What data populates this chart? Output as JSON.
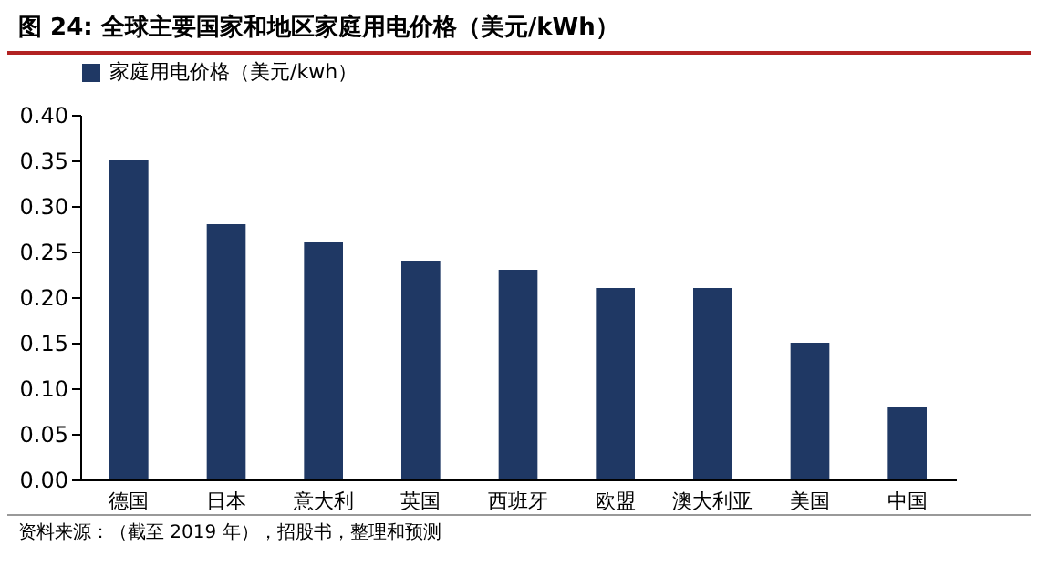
{
  "chart_data": {
    "type": "bar",
    "title": "图 24: 全球主要国家和地区家庭用电价格（美元/kWh）",
    "categories": [
      "德国",
      "日本",
      "意大利",
      "英国",
      "西班牙",
      "欧盟",
      "澳大利亚",
      "美国",
      "中国"
    ],
    "series": [
      {
        "name": "家庭用电价格（美元/kwh）",
        "color": "#1f3864",
        "values": [
          0.35,
          0.28,
          0.26,
          0.24,
          0.23,
          0.21,
          0.21,
          0.15,
          0.08
        ]
      }
    ],
    "ylim": [
      0,
      0.4
    ],
    "yticks": [
      {
        "value": 0,
        "label": "0.00"
      },
      {
        "value": 0.05,
        "label": "0.05"
      },
      {
        "value": 0.1,
        "label": "0.10"
      },
      {
        "value": 0.15,
        "label": "0.15"
      },
      {
        "value": 0.2,
        "label": "0.20"
      },
      {
        "value": 0.25,
        "label": "0.25"
      },
      {
        "value": 0.3,
        "label": "0.30"
      },
      {
        "value": 0.35,
        "label": "0.35"
      },
      {
        "value": 0.4,
        "label": "0.40"
      }
    ],
    "grid": false,
    "legend": "top",
    "annotations": [
      "资料来源：（截至 2019 年），招股书，整理和预测"
    ]
  }
}
